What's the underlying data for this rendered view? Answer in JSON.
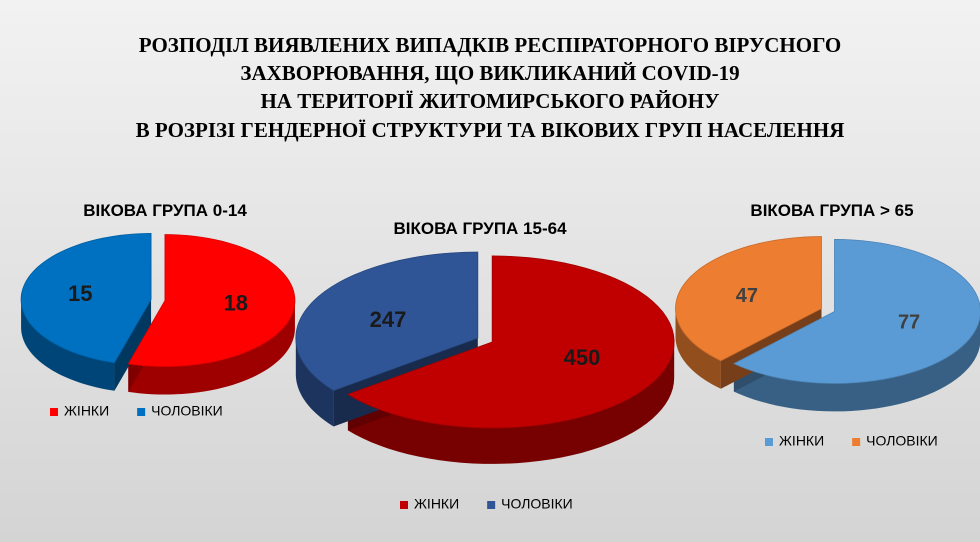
{
  "title": [
    "РОЗПОДІЛ ВИЯВЛЕНИХ ВИПАДКІВ РЕСПІРАТОРНОГО ВІРУСНОГО",
    "ЗАХВОРЮВАННЯ, ЩО ВИКЛИКАНИЙ COVID-19",
    "НА ТЕРИТОРІЇ ЖИТОМИРСЬКОГО РАЙОНУ",
    "В РОЗРІЗІ ГЕНДЕРНОЇ СТРУКТУРИ ТА ВІКОВИХ ГРУП НАСЕЛЕННЯ"
  ],
  "chart_data": [
    {
      "type": "pie",
      "title": "ВІКОВА ГРУПА 0-14",
      "categories": [
        "ЖІНКИ",
        "ЧОЛОВІКИ"
      ],
      "values": [
        18,
        15
      ],
      "colors": [
        "#ff0000",
        "#0070c0"
      ],
      "label_color": "#1a1a1a"
    },
    {
      "type": "pie",
      "title": "ВІКОВА ГРУПА 15-64",
      "categories": [
        "ЖІНКИ",
        "ЧОЛОВІКИ"
      ],
      "values": [
        450,
        247
      ],
      "colors": [
        "#c00000",
        "#2f5597"
      ],
      "label_color": "#1a1a1a"
    },
    {
      "type": "pie",
      "title": "ВІКОВА ГРУПА > 65",
      "categories": [
        "ЖІНКИ",
        "ЧОЛОВІКИ"
      ],
      "values": [
        77,
        47
      ],
      "colors": [
        "#5b9bd5",
        "#ed7d31"
      ],
      "label_color": "#404040"
    }
  ]
}
